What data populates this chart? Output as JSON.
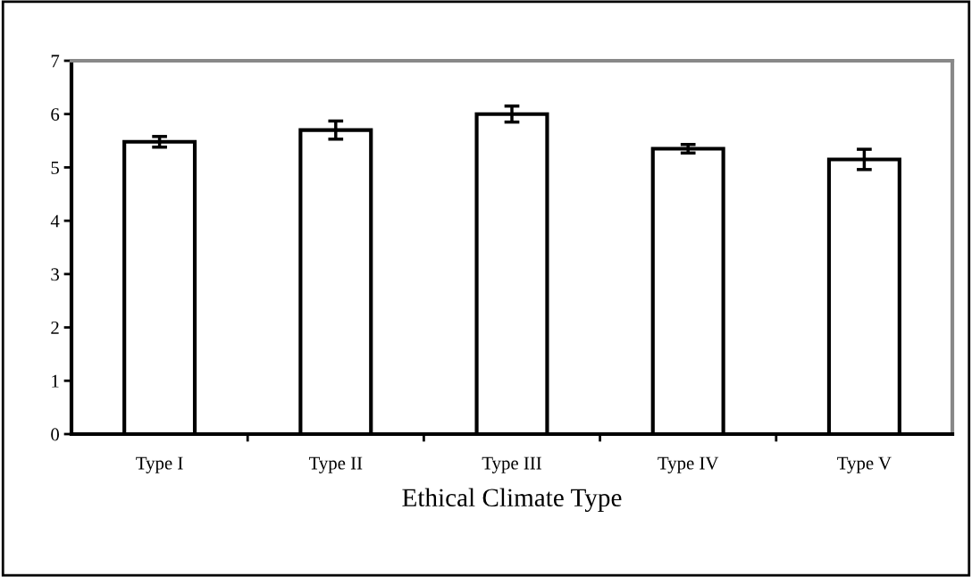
{
  "chart_data": {
    "type": "bar",
    "xlabel": "Ethical Climate Type",
    "categories": [
      "Type I",
      "Type II",
      "Type III",
      "Type IV",
      "Type V"
    ],
    "values": [
      5.48,
      5.7,
      6.0,
      5.35,
      5.15
    ],
    "errors": [
      0.1,
      0.17,
      0.15,
      0.08,
      0.19
    ],
    "color": "#ffffff",
    "ylim": [
      0,
      7
    ],
    "yticks": [
      0,
      1,
      2,
      3,
      4,
      5,
      6,
      7
    ],
    "grid": false
  }
}
